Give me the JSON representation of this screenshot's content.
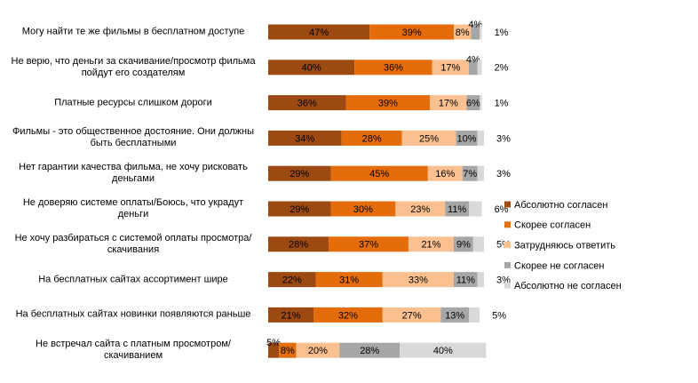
{
  "chart_data": {
    "type": "stacked-bar-horizontal",
    "categories": [
      "Могу найти те же фильмы в бесплатном доступе",
      "Не верю, что деньги за скачивание/просмотр фильма пойдут его создателям",
      "Платные ресурсы слишком дороги",
      "Фильмы - это общественное достояние. Они должны быть бесплатными",
      "Нет гарантии качества фильма, не хочу рисковать деньгами",
      "Не доверяю системе оплаты/Боюсь, что украдут деньги",
      "Не хочу разбираться с системой оплаты просмотра/скачивания",
      "На бесплатных сайтах ассортимент шире",
      "На бесплатных сайтах новинки появляются раньше",
      "Не встречал сайта с платным просмотром/скачиванием"
    ],
    "series": [
      {
        "name": "Абсолютно согласен",
        "color": "#9c4a12",
        "values": [
          47,
          40,
          36,
          34,
          29,
          29,
          28,
          22,
          21,
          5
        ],
        "value_labels": [
          "47%",
          "40%",
          "36%",
          "34%",
          "29%",
          "29%",
          "28%",
          "22%",
          "21%",
          "5%"
        ]
      },
      {
        "name": "Скорее согласен",
        "color": "#e46c0a",
        "values": [
          39,
          36,
          39,
          28,
          45,
          30,
          37,
          31,
          32,
          8
        ],
        "value_labels": [
          "39%",
          "36%",
          "39%",
          "28%",
          "45%",
          "30%",
          "37%",
          "31%",
          "32%",
          "8%"
        ]
      },
      {
        "name": "Затрудняюсь ответить",
        "color": "#fac090",
        "values": [
          8,
          17,
          17,
          25,
          16,
          23,
          21,
          33,
          27,
          20
        ],
        "value_labels": [
          "8%",
          "17%",
          "17%",
          "25%",
          "16%",
          "23%",
          "21%",
          "33%",
          "27%",
          "20%"
        ]
      },
      {
        "name": "Скорее не согласен",
        "color": "#a6a6a6",
        "values": [
          4,
          4,
          6,
          10,
          7,
          11,
          9,
          11,
          13,
          28
        ],
        "value_labels": [
          "4%",
          "4%",
          "6%",
          "10%",
          "7%",
          "11%",
          "9%",
          "11%",
          "13%",
          "28%"
        ]
      },
      {
        "name": "Абсолютно не согласен",
        "color": "#d9d9d9",
        "values": [
          1,
          2,
          1,
          3,
          3,
          6,
          5,
          3,
          5,
          40
        ],
        "value_labels": [
          "1%",
          "2%",
          "1%",
          "3%",
          "3%",
          "6%",
          "5%",
          "3%",
          "5%",
          "40%"
        ]
      }
    ]
  }
}
